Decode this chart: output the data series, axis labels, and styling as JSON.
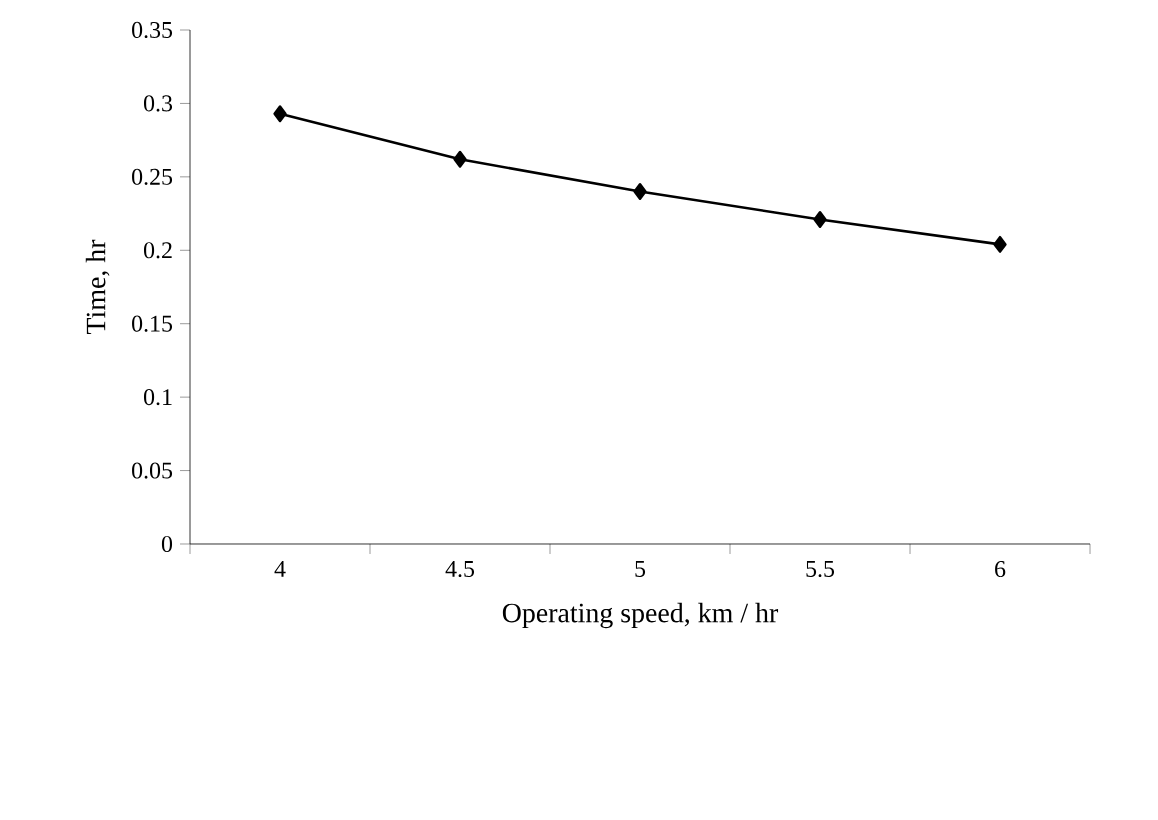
{
  "chart_data": {
    "type": "line",
    "xlabel": "Operating speed, km / hr",
    "ylabel": "Time, hr",
    "categories": [
      "4",
      "4.5",
      "5",
      "5.5",
      "6"
    ],
    "series": [
      {
        "color": "#000000",
        "values": [
          0.293,
          0.262,
          0.24,
          0.221,
          0.204
        ]
      }
    ],
    "ylim": [
      0,
      0.35
    ],
    "yticks": [
      0,
      0.05,
      0.1,
      0.15,
      0.2,
      0.25,
      0.3,
      0.35
    ],
    "marker": "diamond",
    "line_style": "solid"
  }
}
